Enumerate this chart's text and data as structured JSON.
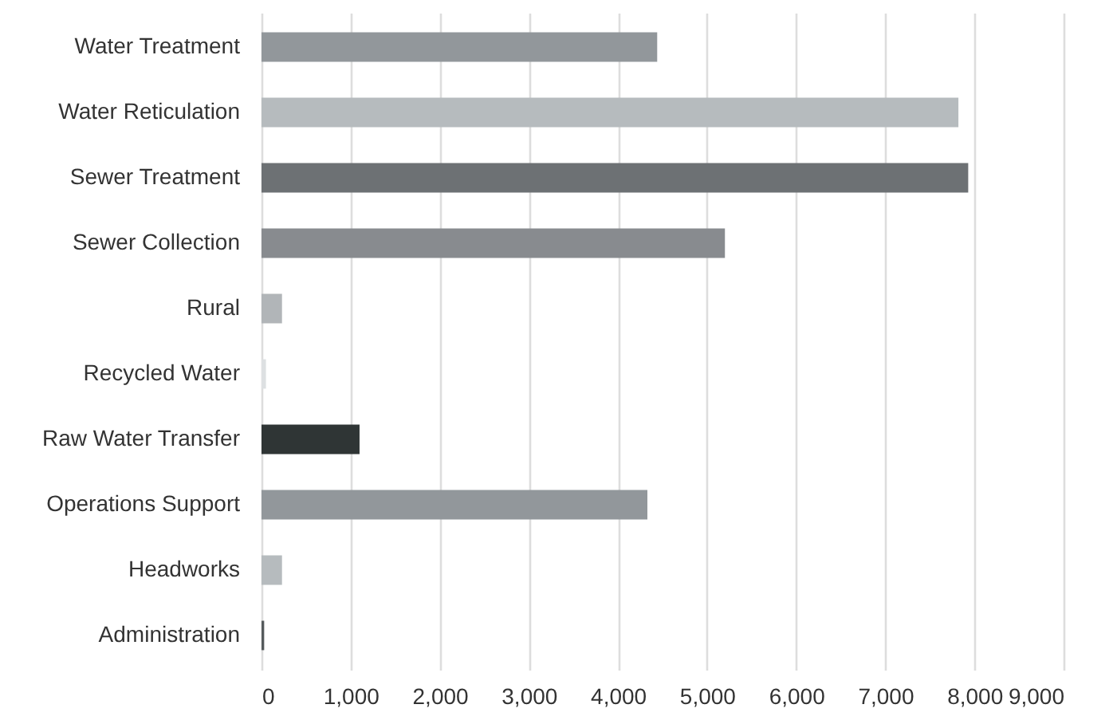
{
  "chart_data": {
    "type": "bar",
    "orientation": "horizontal",
    "categories": [
      "Water Treatment",
      "Water Reticulation",
      "Sewer Treatment",
      "Sewer Collection",
      "Rural",
      "Recycled Water",
      "Raw Water Transfer",
      "Operations Support",
      "Headworks",
      "Administration"
    ],
    "values": [
      4440,
      7820,
      7930,
      5200,
      230,
      50,
      1100,
      4330,
      230,
      30
    ],
    "colors": [
      "#92979b",
      "#b6bbbe",
      "#6d7174",
      "#888b8f",
      "#b1b5b8",
      "#dde0e2",
      "#2f3535",
      "#92979b",
      "#b6bbbe",
      "#555a5c"
    ],
    "xlim": [
      0,
      9000
    ],
    "xticks": [
      {
        "value": 0,
        "label": "0"
      },
      {
        "value": 1000,
        "label": "1,000"
      },
      {
        "value": 2000,
        "label": "2,000"
      },
      {
        "value": 3000,
        "label": "3,000"
      },
      {
        "value": 4000,
        "label": "4,000"
      },
      {
        "value": 5000,
        "label": "5,000"
      },
      {
        "value": 6000,
        "label": "6,000"
      },
      {
        "value": 7000,
        "label": "7,000"
      },
      {
        "value": 8000,
        "label": "8,000"
      },
      {
        "value": 9000,
        "label": "9,000"
      }
    ],
    "grid": "x"
  }
}
